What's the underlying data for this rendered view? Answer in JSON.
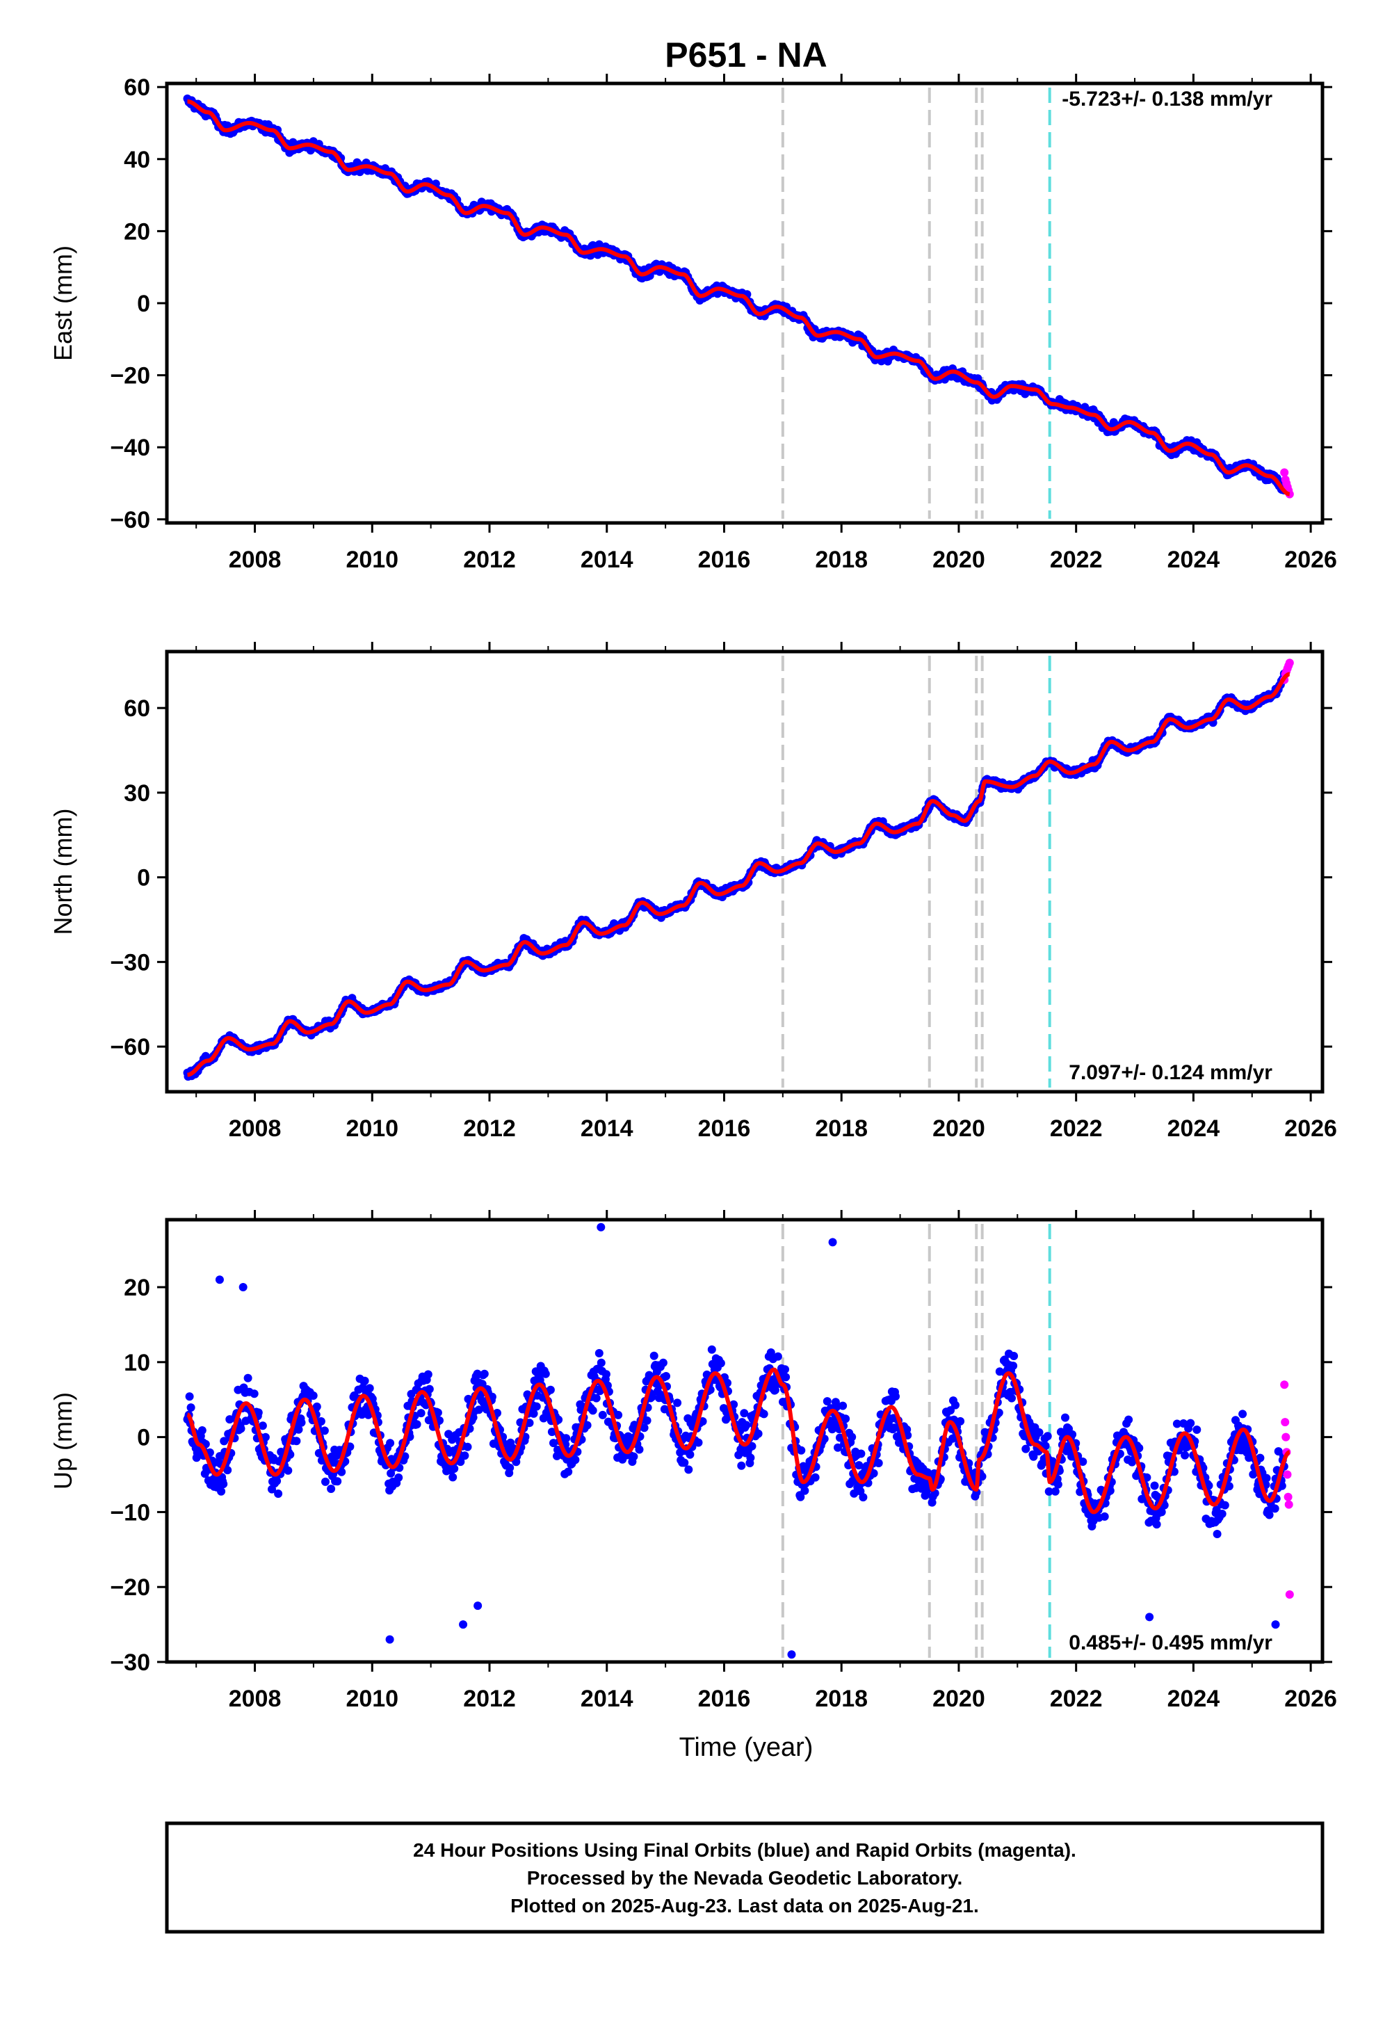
{
  "chart_data": {
    "type": "scatter",
    "title": "P651 - NA",
    "xlabel": "Time (year)",
    "xlim": [
      2006.5,
      2026.2
    ],
    "x_ticks": [
      2008,
      2010,
      2012,
      2014,
      2016,
      2018,
      2020,
      2022,
      2024,
      2026
    ],
    "x_tick_labels": [
      "2008",
      "2010",
      "2012",
      "2014",
      "2016",
      "2018",
      "2020",
      "2022",
      "2024",
      "2026"
    ],
    "data_start": 2006.85,
    "data_end": 2025.64,
    "rapid_start": 2025.55,
    "colors": {
      "final": "#0000ff",
      "rapid": "#ff00ff",
      "model": "#ff0000",
      "step": "#c8c8c8",
      "step_special": "#5fdede"
    },
    "steps": [
      {
        "x": 2017.0,
        "type": "equipment"
      },
      {
        "x": 2019.5,
        "type": "equipment"
      },
      {
        "x": 2020.3,
        "type": "equipment"
      },
      {
        "x": 2020.4,
        "type": "equipment"
      },
      {
        "x": 2021.55,
        "type": "special"
      }
    ],
    "panels": [
      {
        "name": "east",
        "ylabel": "East (mm)",
        "ylim": [
          -61,
          61
        ],
        "y_ticks": [
          60,
          40,
          20,
          0,
          -20,
          -40,
          -60
        ],
        "y_tick_labels": [
          "60",
          "40",
          "20",
          "0",
          "−20",
          "−40",
          "−60"
        ],
        "rate_label": "-5.723+/- 0.138 mm/yr",
        "rate_position": "top-right",
        "model_points": [
          [
            2006.85,
            56
          ],
          [
            2007.2,
            53
          ],
          [
            2007.5,
            48
          ],
          [
            2007.9,
            50
          ],
          [
            2008.3,
            48
          ],
          [
            2008.6,
            43
          ],
          [
            2008.9,
            44
          ],
          [
            2009.3,
            42
          ],
          [
            2009.6,
            37
          ],
          [
            2009.9,
            38
          ],
          [
            2010.3,
            36
          ],
          [
            2010.6,
            31
          ],
          [
            2010.9,
            33
          ],
          [
            2011.3,
            30
          ],
          [
            2011.6,
            25
          ],
          [
            2011.9,
            27
          ],
          [
            2012.3,
            25
          ],
          [
            2012.6,
            19
          ],
          [
            2012.9,
            21
          ],
          [
            2013.3,
            19
          ],
          [
            2013.6,
            14
          ],
          [
            2013.9,
            15
          ],
          [
            2014.3,
            13
          ],
          [
            2014.6,
            8
          ],
          [
            2014.9,
            10
          ],
          [
            2015.3,
            8
          ],
          [
            2015.6,
            2
          ],
          [
            2015.9,
            4
          ],
          [
            2016.3,
            2
          ],
          [
            2016.6,
            -3
          ],
          [
            2016.9,
            -1
          ],
          [
            2017.3,
            -4
          ],
          [
            2017.6,
            -9
          ],
          [
            2017.9,
            -8
          ],
          [
            2018.3,
            -10
          ],
          [
            2018.6,
            -15
          ],
          [
            2018.9,
            -14
          ],
          [
            2019.3,
            -16
          ],
          [
            2019.6,
            -21
          ],
          [
            2019.9,
            -19
          ],
          [
            2020.3,
            -22
          ],
          [
            2020.6,
            -26
          ],
          [
            2020.9,
            -23
          ],
          [
            2021.3,
            -24
          ],
          [
            2021.6,
            -28
          ],
          [
            2021.9,
            -29
          ],
          [
            2022.3,
            -31
          ],
          [
            2022.6,
            -35
          ],
          [
            2022.9,
            -33
          ],
          [
            2023.3,
            -36
          ],
          [
            2023.6,
            -41
          ],
          [
            2023.9,
            -39
          ],
          [
            2024.3,
            -42
          ],
          [
            2024.6,
            -47
          ],
          [
            2024.9,
            -45
          ],
          [
            2025.3,
            -48
          ],
          [
            2025.64,
            -53
          ]
        ],
        "scatter_spread": 1.5,
        "rapid_values": [
          -47,
          -49,
          -50,
          -51,
          -52,
          -53
        ]
      },
      {
        "name": "north",
        "ylabel": "North (mm)",
        "ylim": [
          -76,
          80
        ],
        "y_ticks": [
          60,
          30,
          0,
          -30,
          -60
        ],
        "y_tick_labels": [
          "60",
          "30",
          "0",
          "−30",
          "−60"
        ],
        "rate_label": "7.097+/- 0.124 mm/yr",
        "rate_position": "bottom-right",
        "model_points": [
          [
            2006.85,
            -70
          ],
          [
            2007.2,
            -65
          ],
          [
            2007.55,
            -57
          ],
          [
            2007.9,
            -61
          ],
          [
            2008.3,
            -59
          ],
          [
            2008.6,
            -51
          ],
          [
            2008.9,
            -55
          ],
          [
            2009.3,
            -52
          ],
          [
            2009.6,
            -44
          ],
          [
            2009.9,
            -48
          ],
          [
            2010.3,
            -45
          ],
          [
            2010.6,
            -37
          ],
          [
            2010.9,
            -40
          ],
          [
            2011.3,
            -38
          ],
          [
            2011.6,
            -30
          ],
          [
            2011.9,
            -33
          ],
          [
            2012.3,
            -31
          ],
          [
            2012.6,
            -23
          ],
          [
            2012.9,
            -27
          ],
          [
            2013.3,
            -24
          ],
          [
            2013.6,
            -16
          ],
          [
            2013.9,
            -20
          ],
          [
            2014.3,
            -17
          ],
          [
            2014.6,
            -9
          ],
          [
            2014.9,
            -13
          ],
          [
            2015.3,
            -10
          ],
          [
            2015.6,
            -2
          ],
          [
            2015.9,
            -6
          ],
          [
            2016.3,
            -3
          ],
          [
            2016.6,
            5
          ],
          [
            2016.9,
            2
          ],
          [
            2017.3,
            5
          ],
          [
            2017.6,
            12
          ],
          [
            2017.9,
            9
          ],
          [
            2018.3,
            12
          ],
          [
            2018.6,
            19
          ],
          [
            2018.9,
            16
          ],
          [
            2019.3,
            19
          ],
          [
            2019.55,
            27
          ],
          [
            2019.9,
            22
          ],
          [
            2020.1,
            20
          ],
          [
            2020.35,
            27
          ],
          [
            2020.45,
            34
          ],
          [
            2020.9,
            32
          ],
          [
            2021.3,
            36
          ],
          [
            2021.55,
            41
          ],
          [
            2021.9,
            37
          ],
          [
            2022.3,
            40
          ],
          [
            2022.6,
            48
          ],
          [
            2022.9,
            45
          ],
          [
            2023.3,
            48
          ],
          [
            2023.6,
            56
          ],
          [
            2023.9,
            53
          ],
          [
            2024.3,
            56
          ],
          [
            2024.6,
            63
          ],
          [
            2024.9,
            60
          ],
          [
            2025.3,
            64
          ],
          [
            2025.64,
            72
          ]
        ],
        "scatter_spread": 1.5,
        "rapid_values": [
          70,
          72,
          73,
          74,
          75,
          76
        ]
      },
      {
        "name": "up",
        "ylabel": "Up (mm)",
        "ylim": [
          -30,
          29
        ],
        "y_ticks": [
          20,
          10,
          0,
          -10,
          -20,
          -30
        ],
        "y_tick_labels": [
          "20",
          "10",
          "0",
          "−10",
          "−20",
          "−30"
        ],
        "rate_label": "0.485+/- 0.495 mm/yr",
        "rate_position": "bottom-right",
        "model_points": [
          [
            2006.85,
            3
          ],
          [
            2007.05,
            -1
          ],
          [
            2007.35,
            -5
          ],
          [
            2007.85,
            4.5
          ],
          [
            2008.35,
            -5
          ],
          [
            2008.85,
            5
          ],
          [
            2009.35,
            -4.5
          ],
          [
            2009.85,
            5.5
          ],
          [
            2010.35,
            -4
          ],
          [
            2010.85,
            6
          ],
          [
            2011.35,
            -3.5
          ],
          [
            2011.85,
            6.5
          ],
          [
            2012.35,
            -3
          ],
          [
            2012.85,
            7
          ],
          [
            2013.35,
            -2.5
          ],
          [
            2013.85,
            7.5
          ],
          [
            2014.35,
            -2
          ],
          [
            2014.85,
            8
          ],
          [
            2015.35,
            -1.5
          ],
          [
            2015.85,
            8.5
          ],
          [
            2016.35,
            -1
          ],
          [
            2016.85,
            9
          ],
          [
            2017.0,
            7
          ],
          [
            2017.35,
            -6
          ],
          [
            2017.85,
            3.5
          ],
          [
            2018.35,
            -6
          ],
          [
            2018.85,
            4
          ],
          [
            2019.3,
            -5
          ],
          [
            2019.5,
            -5.5
          ],
          [
            2019.55,
            -7
          ],
          [
            2019.85,
            2
          ],
          [
            2020.3,
            -7
          ],
          [
            2020.35,
            -3
          ],
          [
            2020.85,
            8.5
          ],
          [
            2021.3,
            -1
          ],
          [
            2021.5,
            -2
          ],
          [
            2021.55,
            -6
          ],
          [
            2021.85,
            0
          ],
          [
            2022.3,
            -10
          ],
          [
            2022.85,
            0
          ],
          [
            2023.35,
            -9.5
          ],
          [
            2023.85,
            0.5
          ],
          [
            2024.35,
            -9
          ],
          [
            2024.85,
            1
          ],
          [
            2025.3,
            -8.5
          ],
          [
            2025.64,
            -2
          ]
        ],
        "scatter_spread": 4,
        "outliers": [
          [
            2013.9,
            28
          ],
          [
            2017.85,
            26
          ],
          [
            2010.3,
            -27
          ],
          [
            2017.15,
            -29
          ],
          [
            2025.4,
            -25
          ],
          [
            2007.4,
            21
          ],
          [
            2007.8,
            20
          ],
          [
            2011.55,
            -25
          ],
          [
            2011.8,
            -22.5
          ],
          [
            2023.25,
            -24
          ]
        ],
        "rapid_values": [
          7,
          2,
          0,
          -2,
          -5,
          -8,
          -9,
          -21
        ]
      }
    ]
  },
  "footer": {
    "lines": [
      "24 Hour Positions Using Final Orbits (blue) and Rapid Orbits (magenta).",
      "Processed by the Nevada Geodetic Laboratory.",
      "Plotted on 2025-Aug-23. Last data on 2025-Aug-21."
    ]
  }
}
